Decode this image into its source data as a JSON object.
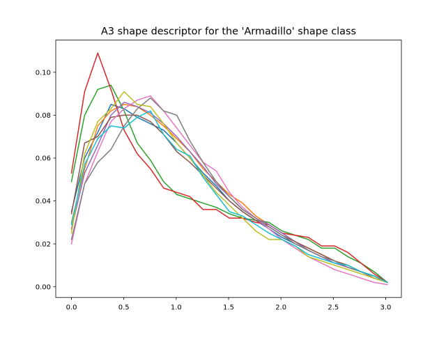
{
  "chart_data": {
    "type": "line",
    "title": "A3 shape descriptor for the 'Armadillo' shape class",
    "xlabel": "",
    "ylabel": "",
    "xlim": [
      -0.15,
      3.15
    ],
    "ylim": [
      -0.005,
      0.115
    ],
    "x_ticks": [
      0.0,
      0.5,
      1.0,
      1.5,
      2.0,
      2.5,
      3.0
    ],
    "x_tick_labels": [
      "0.0",
      "0.5",
      "1.0",
      "1.5",
      "2.0",
      "2.5",
      "3.0"
    ],
    "y_ticks": [
      0.0,
      0.02,
      0.04,
      0.06,
      0.08,
      0.1
    ],
    "y_tick_labels": [
      "0.00",
      "0.02",
      "0.04",
      "0.06",
      "0.08",
      "0.10"
    ],
    "grid": false,
    "legend": "none",
    "x": [
      0.0,
      0.1257,
      0.2513,
      0.377,
      0.5027,
      0.6283,
      0.754,
      0.8796,
      1.0053,
      1.131,
      1.2566,
      1.3823,
      1.508,
      1.6336,
      1.7593,
      1.885,
      2.0106,
      2.1363,
      2.2619,
      2.3876,
      2.5133,
      2.6389,
      2.7646,
      2.8903,
      3.0159
    ],
    "series": [
      {
        "color": "#1f77b4",
        "values": [
          0.035,
          0.06,
          0.072,
          0.085,
          0.083,
          0.079,
          0.076,
          0.073,
          0.067,
          0.06,
          0.053,
          0.047,
          0.04,
          0.035,
          0.031,
          0.027,
          0.023,
          0.02,
          0.017,
          0.014,
          0.012,
          0.009,
          0.007,
          0.005,
          0.002
        ]
      },
      {
        "color": "#ff7f0e",
        "values": [
          0.03,
          0.055,
          0.075,
          0.082,
          0.085,
          0.084,
          0.08,
          0.075,
          0.069,
          0.063,
          0.055,
          0.049,
          0.043,
          0.039,
          0.033,
          0.029,
          0.025,
          0.021,
          0.018,
          0.015,
          0.012,
          0.01,
          0.007,
          0.005,
          0.002
        ]
      },
      {
        "color": "#2ca02c",
        "values": [
          0.049,
          0.08,
          0.092,
          0.094,
          0.082,
          0.067,
          0.059,
          0.049,
          0.043,
          0.041,
          0.039,
          0.037,
          0.034,
          0.032,
          0.031,
          0.03,
          0.026,
          0.024,
          0.022,
          0.018,
          0.018,
          0.014,
          0.011,
          0.007,
          0.002
        ]
      },
      {
        "color": "#d62728",
        "values": [
          0.053,
          0.091,
          0.109,
          0.092,
          0.073,
          0.062,
          0.055,
          0.046,
          0.044,
          0.042,
          0.036,
          0.036,
          0.032,
          0.032,
          0.03,
          0.029,
          0.025,
          0.024,
          0.023,
          0.019,
          0.019,
          0.016,
          0.011,
          0.006,
          0.002
        ]
      },
      {
        "color": "#9467bd",
        "values": [
          0.027,
          0.053,
          0.066,
          0.08,
          0.086,
          0.084,
          0.081,
          0.076,
          0.07,
          0.063,
          0.056,
          0.048,
          0.042,
          0.036,
          0.032,
          0.029,
          0.025,
          0.021,
          0.017,
          0.014,
          0.011,
          0.009,
          0.007,
          0.004,
          0.002
        ]
      },
      {
        "color": "#8c564b",
        "values": [
          0.034,
          0.067,
          0.07,
          0.079,
          0.08,
          0.08,
          0.077,
          0.071,
          0.063,
          0.058,
          0.052,
          0.046,
          0.04,
          0.035,
          0.031,
          0.028,
          0.024,
          0.021,
          0.018,
          0.015,
          0.012,
          0.01,
          0.007,
          0.005,
          0.002
        ]
      },
      {
        "color": "#e377c2",
        "values": [
          0.02,
          0.048,
          0.063,
          0.077,
          0.083,
          0.087,
          0.089,
          0.082,
          0.074,
          0.066,
          0.058,
          0.054,
          0.044,
          0.037,
          0.032,
          0.027,
          0.022,
          0.018,
          0.014,
          0.011,
          0.008,
          0.006,
          0.004,
          0.002,
          0.001
        ]
      },
      {
        "color": "#7f7f7f",
        "values": [
          0.022,
          0.048,
          0.058,
          0.064,
          0.075,
          0.083,
          0.088,
          0.082,
          0.08,
          0.068,
          0.058,
          0.049,
          0.042,
          0.036,
          0.032,
          0.028,
          0.024,
          0.02,
          0.017,
          0.014,
          0.012,
          0.009,
          0.007,
          0.004,
          0.002
        ]
      },
      {
        "color": "#bcbd22",
        "values": [
          0.025,
          0.062,
          0.077,
          0.083,
          0.091,
          0.085,
          0.084,
          0.076,
          0.067,
          0.06,
          0.052,
          0.044,
          0.038,
          0.032,
          0.026,
          0.022,
          0.022,
          0.019,
          0.014,
          0.012,
          0.01,
          0.008,
          0.006,
          0.004,
          0.002
        ]
      },
      {
        "color": "#17becf",
        "values": [
          0.029,
          0.057,
          0.069,
          0.075,
          0.074,
          0.079,
          0.082,
          0.071,
          0.064,
          0.061,
          0.051,
          0.043,
          0.035,
          0.033,
          0.029,
          0.025,
          0.022,
          0.019,
          0.015,
          0.013,
          0.011,
          0.01,
          0.007,
          0.005,
          0.002
        ]
      }
    ]
  }
}
